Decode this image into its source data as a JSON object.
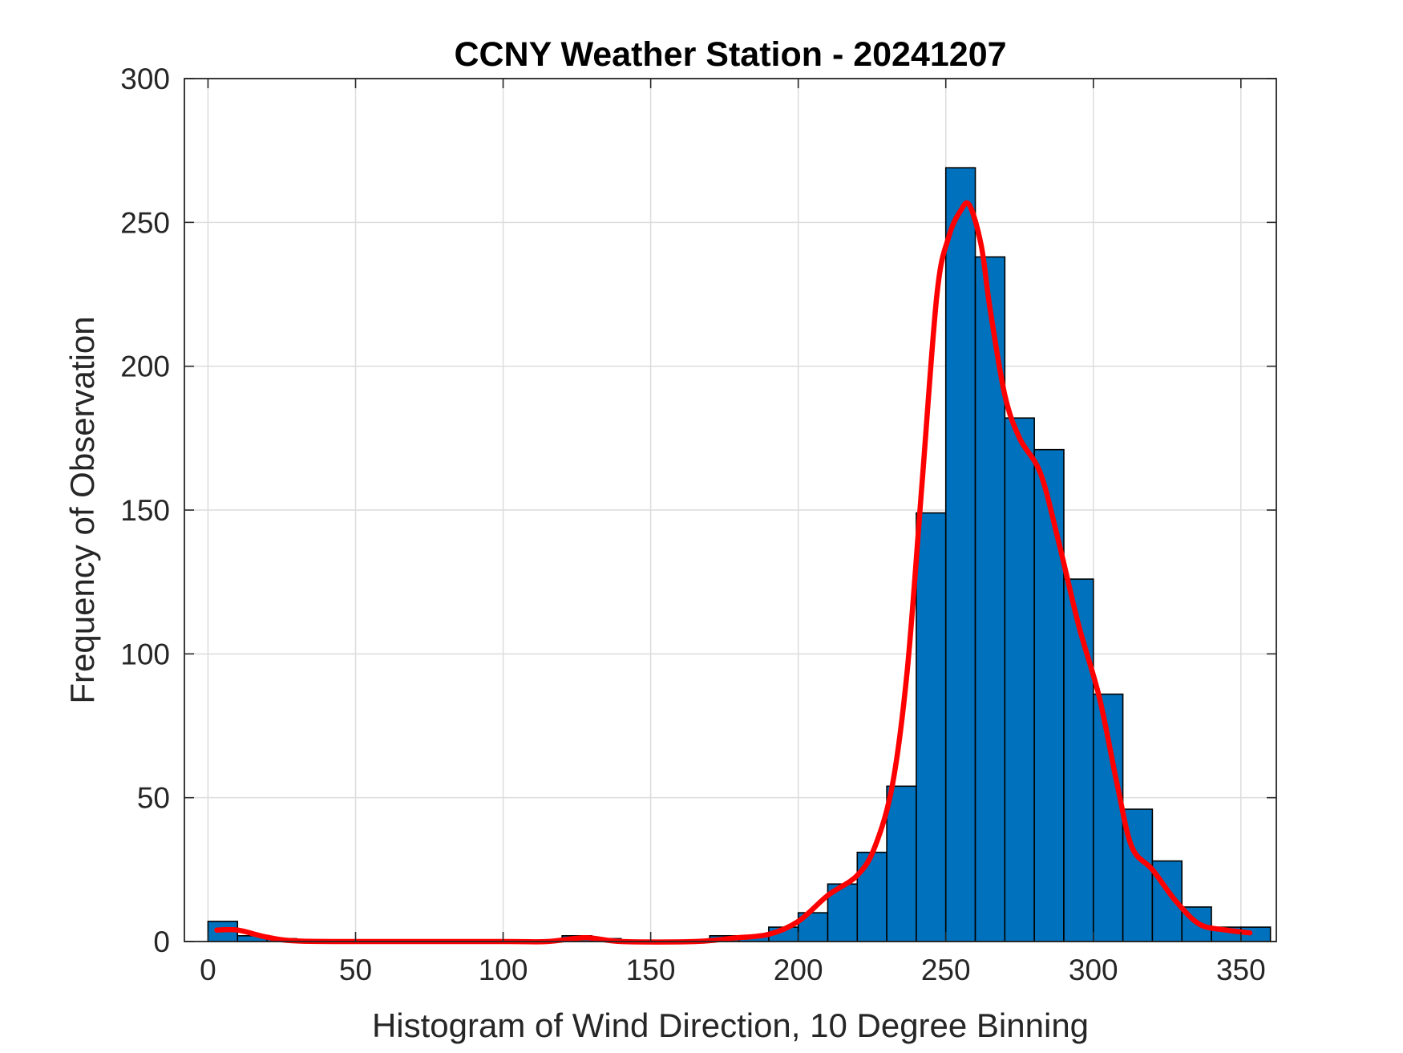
{
  "chart_data": {
    "type": "bar",
    "title": "CCNY Weather Station - 20241207",
    "xlabel": "Histogram of Wind Direction, 10 Degree Binning",
    "ylabel": "Frequency of Observation",
    "xlim": [
      -8,
      362
    ],
    "ylim": [
      0,
      300
    ],
    "x_ticks": [
      0,
      50,
      100,
      150,
      200,
      250,
      300,
      350
    ],
    "y_ticks": [
      0,
      50,
      100,
      150,
      200,
      250,
      300
    ],
    "grid": true,
    "bin_width": 10,
    "bins": [
      {
        "start": 0,
        "value": 7
      },
      {
        "start": 10,
        "value": 2
      },
      {
        "start": 20,
        "value": 1
      },
      {
        "start": 30,
        "value": 0
      },
      {
        "start": 40,
        "value": 0
      },
      {
        "start": 50,
        "value": 0
      },
      {
        "start": 60,
        "value": 0
      },
      {
        "start": 70,
        "value": 0
      },
      {
        "start": 80,
        "value": 0
      },
      {
        "start": 90,
        "value": 0
      },
      {
        "start": 100,
        "value": 0
      },
      {
        "start": 110,
        "value": 0
      },
      {
        "start": 120,
        "value": 2
      },
      {
        "start": 130,
        "value": 1
      },
      {
        "start": 140,
        "value": 0
      },
      {
        "start": 150,
        "value": 0
      },
      {
        "start": 160,
        "value": 0
      },
      {
        "start": 170,
        "value": 2
      },
      {
        "start": 180,
        "value": 2
      },
      {
        "start": 190,
        "value": 5
      },
      {
        "start": 200,
        "value": 10
      },
      {
        "start": 210,
        "value": 20
      },
      {
        "start": 220,
        "value": 31
      },
      {
        "start": 230,
        "value": 54
      },
      {
        "start": 240,
        "value": 149
      },
      {
        "start": 250,
        "value": 269
      },
      {
        "start": 260,
        "value": 238
      },
      {
        "start": 270,
        "value": 182
      },
      {
        "start": 280,
        "value": 171
      },
      {
        "start": 290,
        "value": 126
      },
      {
        "start": 300,
        "value": 86
      },
      {
        "start": 310,
        "value": 46
      },
      {
        "start": 320,
        "value": 28
      },
      {
        "start": 330,
        "value": 12
      },
      {
        "start": 340,
        "value": 5
      },
      {
        "start": 350,
        "value": 5
      }
    ],
    "density_curve": [
      [
        3,
        4
      ],
      [
        10,
        4
      ],
      [
        20,
        1.5
      ],
      [
        30,
        0.2
      ],
      [
        50,
        0
      ],
      [
        100,
        0
      ],
      [
        115,
        0
      ],
      [
        128,
        1.3
      ],
      [
        140,
        0
      ],
      [
        165,
        0
      ],
      [
        178,
        1.2
      ],
      [
        190,
        2.5
      ],
      [
        200,
        7
      ],
      [
        210,
        16
      ],
      [
        220,
        23
      ],
      [
        226,
        33
      ],
      [
        232,
        55
      ],
      [
        237,
        95
      ],
      [
        242,
        160
      ],
      [
        247,
        225
      ],
      [
        251,
        245
      ],
      [
        255,
        254
      ],
      [
        258,
        256
      ],
      [
        262,
        242
      ],
      [
        265,
        220
      ],
      [
        270,
        190
      ],
      [
        275,
        175
      ],
      [
        282,
        163
      ],
      [
        288,
        140
      ],
      [
        295,
        110
      ],
      [
        302,
        85
      ],
      [
        308,
        55
      ],
      [
        313,
        33
      ],
      [
        320,
        25
      ],
      [
        328,
        14
      ],
      [
        336,
        6
      ],
      [
        345,
        4
      ],
      [
        353,
        3
      ]
    ],
    "colors": {
      "bar_fill": "#0072BD",
      "bar_edge": "#000000",
      "curve": "#FF0000",
      "grid": "#dcdcdc",
      "axes": "#262626"
    }
  }
}
